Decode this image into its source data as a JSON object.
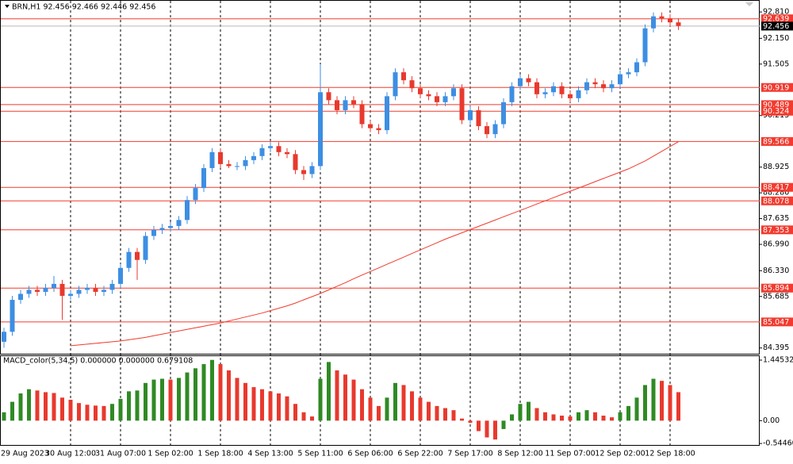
{
  "chart_data": [
    {
      "type": "candlestick",
      "title": "BRN,H1 92.456 92.466 92.446 92.456",
      "categories": [
        "29 Aug 2023",
        null,
        null,
        null,
        null,
        null,
        null,
        null,
        "30 Aug 12:00",
        null,
        null,
        null,
        null,
        null,
        "31 Aug 07:00",
        null,
        null,
        null,
        null,
        null,
        "1 Sep 02:00",
        null,
        null,
        null,
        null,
        null,
        "1 Sep 18:00",
        null,
        null,
        null,
        null,
        null,
        "4 Sep 13:00",
        null,
        null,
        null,
        null,
        null,
        "5 Sep 11:00",
        null,
        null,
        null,
        null,
        null,
        "6 Sep 06:00",
        null,
        null,
        null,
        null,
        null,
        "6 Sep 22:00",
        null,
        null,
        null,
        null,
        null,
        "7 Sep 17:00",
        null,
        null,
        null,
        null,
        null,
        "8 Sep 12:00",
        null,
        null,
        null,
        null,
        null,
        "11 Sep 07:00",
        null,
        null,
        null,
        null,
        null,
        "12 Sep 02:00",
        null,
        null,
        null,
        null,
        null,
        "12 Sep 18:00",
        null
      ],
      "open": [
        84.55,
        84.8,
        85.6,
        85.75,
        85.85,
        85.8,
        85.9,
        86.0,
        85.7,
        85.75,
        85.85,
        85.9,
        85.8,
        85.85,
        86.0,
        86.4,
        86.8,
        86.6,
        87.2,
        87.35,
        87.4,
        87.45,
        87.6,
        88.1,
        88.4,
        88.9,
        89.3,
        89.0,
        88.95,
        88.95,
        89.1,
        89.2,
        89.4,
        89.45,
        89.3,
        89.25,
        88.85,
        88.75,
        88.95,
        90.8,
        90.6,
        90.35,
        90.6,
        90.5,
        90.0,
        89.9,
        89.85,
        90.7,
        91.3,
        91.1,
        90.9,
        90.75,
        90.7,
        90.55,
        90.7,
        90.9,
        90.1,
        90.35,
        89.95,
        89.75,
        90.0,
        90.55,
        90.95,
        91.15,
        91.05,
        90.75,
        90.8,
        90.95,
        90.75,
        90.65,
        90.85,
        91.05,
        91.0,
        90.9,
        91.0,
        91.25,
        91.3,
        91.55,
        92.4,
        92.7,
        92.65,
        92.55
      ],
      "high": [
        84.9,
        85.7,
        85.85,
        85.95,
        85.95,
        86.0,
        86.2,
        86.1,
        85.85,
        85.95,
        86.0,
        86.0,
        85.95,
        86.1,
        86.5,
        86.9,
        86.9,
        87.3,
        87.45,
        87.5,
        87.55,
        87.7,
        88.2,
        88.5,
        89.0,
        89.4,
        89.4,
        89.1,
        89.05,
        89.2,
        89.3,
        89.5,
        89.55,
        89.55,
        89.4,
        89.35,
        88.95,
        89.05,
        91.5,
        90.9,
        90.7,
        90.7,
        90.7,
        90.6,
        90.1,
        90.0,
        90.8,
        91.4,
        91.4,
        91.2,
        91.0,
        90.85,
        90.8,
        90.8,
        91.0,
        91.0,
        90.45,
        90.45,
        90.05,
        90.1,
        90.65,
        91.05,
        91.25,
        91.25,
        91.15,
        90.9,
        91.05,
        91.05,
        90.85,
        90.95,
        91.15,
        91.15,
        91.1,
        91.1,
        91.35,
        91.4,
        91.65,
        92.5,
        92.8,
        92.8,
        92.75,
        92.65
      ],
      "low": [
        84.4,
        84.7,
        85.5,
        85.65,
        85.7,
        85.7,
        85.8,
        85.1,
        85.6,
        85.65,
        85.75,
        85.7,
        85.7,
        85.75,
        85.9,
        86.3,
        86.1,
        86.5,
        87.1,
        87.25,
        87.3,
        87.35,
        87.5,
        88.0,
        88.3,
        88.8,
        88.9,
        88.9,
        88.85,
        88.85,
        89.0,
        89.1,
        89.3,
        89.2,
        89.15,
        88.75,
        88.6,
        88.65,
        88.85,
        90.5,
        90.25,
        90.25,
        90.4,
        89.9,
        89.8,
        89.75,
        89.75,
        90.6,
        91.0,
        90.8,
        90.65,
        90.6,
        90.45,
        90.45,
        90.6,
        90.0,
        90.0,
        89.85,
        89.65,
        89.65,
        89.9,
        90.45,
        90.85,
        90.95,
        90.65,
        90.65,
        90.7,
        90.65,
        90.55,
        90.55,
        90.75,
        90.9,
        90.8,
        90.8,
        90.9,
        91.15,
        91.2,
        91.45,
        92.3,
        92.55,
        92.45,
        92.36
      ],
      "close": [
        84.8,
        85.6,
        85.75,
        85.85,
        85.8,
        85.9,
        86.0,
        85.7,
        85.75,
        85.85,
        85.9,
        85.8,
        85.85,
        86.0,
        86.4,
        86.8,
        86.6,
        87.2,
        87.35,
        87.4,
        87.45,
        87.6,
        88.1,
        88.4,
        88.9,
        89.3,
        89.0,
        88.95,
        88.95,
        89.1,
        89.2,
        89.4,
        89.45,
        89.3,
        89.25,
        88.85,
        88.75,
        88.95,
        90.8,
        90.6,
        90.35,
        90.6,
        90.5,
        90.0,
        89.9,
        89.85,
        90.7,
        91.3,
        91.1,
        90.9,
        90.75,
        90.7,
        90.55,
        90.7,
        90.9,
        90.1,
        90.35,
        89.95,
        89.75,
        90.0,
        90.55,
        90.95,
        91.15,
        91.05,
        90.75,
        90.8,
        90.95,
        90.75,
        90.65,
        90.85,
        91.05,
        91.0,
        90.9,
        91.0,
        91.25,
        91.3,
        91.55,
        92.4,
        92.7,
        92.65,
        92.55,
        92.46
      ],
      "up_color": "#3d8ee3",
      "down_color": "#e8392e",
      "ma": {
        "color": "#f03a2e",
        "values": [
          null,
          null,
          null,
          null,
          null,
          null,
          null,
          null,
          84.45,
          84.47,
          84.49,
          84.51,
          84.53,
          84.55,
          84.57,
          84.6,
          84.63,
          84.66,
          84.7,
          84.74,
          84.78,
          84.82,
          84.86,
          84.9,
          84.94,
          84.98,
          85.02,
          85.07,
          85.12,
          85.17,
          85.22,
          85.27,
          85.33,
          85.39,
          85.45,
          85.52,
          85.6,
          85.68,
          85.76,
          85.85,
          85.94,
          86.03,
          86.13,
          86.22,
          86.31,
          86.4,
          86.49,
          86.58,
          86.67,
          86.76,
          86.85,
          86.94,
          87.03,
          87.12,
          87.2,
          87.28,
          87.36,
          87.44,
          87.52,
          87.6,
          87.68,
          87.76,
          87.84,
          87.92,
          88.0,
          88.08,
          88.16,
          88.24,
          88.32,
          88.4,
          88.48,
          88.56,
          88.64,
          88.72,
          88.8,
          88.88,
          88.98,
          89.08,
          89.2,
          89.32,
          89.44,
          89.56
        ]
      },
      "levels": [
        92.639,
        90.919,
        90.489,
        90.324,
        89.566,
        88.417,
        88.078,
        87.353,
        85.894,
        85.047
      ],
      "level_color": "#f23b2f",
      "last_price": 92.456,
      "ylim": [
        84.25,
        93.09
      ],
      "yticks": [
        {
          "value": 92.81,
          "label": "92.810"
        },
        {
          "value": 92.15,
          "label": "92.150"
        },
        91.505,
        90.215,
        88.925,
        {
          "value": 88.28,
          "label": "88.280"
        },
        87.635,
        {
          "value": 86.99,
          "label": "86.990"
        },
        {
          "value": 86.33,
          "label": "86.330"
        },
        85.685,
        84.395
      ],
      "grid": true
    },
    {
      "type": "bar",
      "title": "MACD_color(5,34,5) 0.000000 0.000000 0.679108",
      "values": [
        0.2,
        0.45,
        0.65,
        0.75,
        0.72,
        0.68,
        0.66,
        0.55,
        0.5,
        0.42,
        0.38,
        0.36,
        0.35,
        0.4,
        0.52,
        0.7,
        0.72,
        0.9,
        0.98,
        1.0,
        0.98,
        1.02,
        1.15,
        1.25,
        1.35,
        1.45,
        1.35,
        1.2,
        1.02,
        0.9,
        0.8,
        0.75,
        0.7,
        0.65,
        0.58,
        0.4,
        0.2,
        0.1,
        1.0,
        1.4,
        1.2,
        1.1,
        0.98,
        0.75,
        0.55,
        0.35,
        0.55,
        0.9,
        0.85,
        0.7,
        0.55,
        0.45,
        0.35,
        0.3,
        0.25,
        0.05,
        -0.05,
        -0.25,
        -0.4,
        -0.45,
        -0.2,
        0.15,
        0.4,
        0.45,
        0.3,
        0.2,
        0.15,
        0.12,
        0.1,
        0.2,
        0.25,
        0.2,
        0.12,
        0.08,
        0.2,
        0.35,
        0.55,
        0.85,
        1.0,
        0.95,
        0.85,
        0.68
      ],
      "up_color": "#2f8a24",
      "down_color": "#e8392e",
      "ylim": [
        -0.58,
        1.54
      ],
      "yticks": [
        {
          "value": 1.445325,
          "label": "1.445325"
        },
        {
          "value": 0,
          "label": "0.00"
        },
        {
          "value": -0.544601,
          "label": "-0.544601"
        }
      ]
    }
  ]
}
